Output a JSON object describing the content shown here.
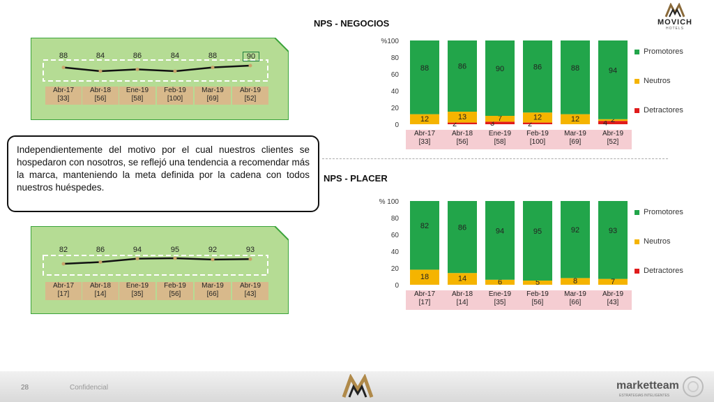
{
  "brand": {
    "name": "MOVICH",
    "sub": "HOTELS",
    "footer_brand": "marketteam",
    "footer_sub": "ESTRATEGIAS INTELIGENTES",
    "page_number": "28",
    "confidential": "Confidencial"
  },
  "callout_text": "Independientemente del motivo por el cual nuestros clientes se hospedaron con nosotros, se reflejó una tendencia a recomendar más la marca, manteniendo la meta definida por la cadena con todos nuestros huéspedes.",
  "colors": {
    "promotores": "#22a54a",
    "neutros": "#f5b400",
    "detractores": "#e01b1b",
    "panel_green": "#b5dc94",
    "panel_border": "#3aa33a",
    "label_bg_gold": "#d8b98b",
    "label_bg_pink": "#f5cdd2"
  },
  "mini_top": {
    "values": [
      "88",
      "84",
      "86",
      "84",
      "88",
      "90"
    ],
    "labels": [
      [
        "Abr-17",
        "[33]"
      ],
      [
        "Abr-18",
        "[56]"
      ],
      [
        "Ene-19",
        "[58]"
      ],
      [
        "Feb-19",
        "[100]"
      ],
      [
        "Mar-19",
        "[69]"
      ],
      [
        "Abr-19",
        "[52]"
      ]
    ]
  },
  "mini_bottom": {
    "values": [
      "82",
      "86",
      "94",
      "95",
      "92",
      "93"
    ],
    "labels": [
      [
        "Abr-17",
        "[17]"
      ],
      [
        "Abr-18",
        "[14]"
      ],
      [
        "Ene-19",
        "[35]"
      ],
      [
        "Feb-19",
        "[56]"
      ],
      [
        "Mar-19",
        "[66]"
      ],
      [
        "Abr-19",
        "[43]"
      ]
    ]
  },
  "legend": [
    "Promotores",
    "Neutros",
    "Detractores"
  ],
  "chart_data": [
    {
      "type": "bar",
      "title": "NPS - NEGOCIOS",
      "ylabel": "%",
      "ylim": [
        0,
        100
      ],
      "yticks": [
        "%100",
        "80",
        "60",
        "40",
        "20",
        "0"
      ],
      "categories": [
        [
          "Abr-17",
          "[33]"
        ],
        [
          "Abr-18",
          "[56]"
        ],
        [
          "Ene-19",
          "[58]"
        ],
        [
          "Feb-19",
          "[100]"
        ],
        [
          "Mar-19",
          "[69]"
        ],
        [
          "Abr-19",
          "[52]"
        ]
      ],
      "series": [
        {
          "name": "Promotores",
          "values": [
            88,
            86,
            90,
            86,
            88,
            94
          ]
        },
        {
          "name": "Neutros",
          "values": [
            12,
            13,
            7,
            12,
            12,
            2
          ]
        },
        {
          "name": "Detractores",
          "values": [
            0,
            2,
            3,
            2,
            0,
            4
          ]
        }
      ],
      "data_labels": {
        "Promotores": [
          "88",
          "86",
          "90",
          "86",
          "88",
          "94"
        ],
        "Neutros": [
          "12",
          "13",
          "7",
          "12",
          "12",
          "2"
        ],
        "Detractores": [
          "",
          "2",
          "3",
          "2",
          "",
          "4"
        ]
      },
      "legend_position": "right"
    },
    {
      "type": "bar",
      "title": "NPS - PLACER",
      "ylabel": "%",
      "ylim": [
        0,
        100
      ],
      "yticks": [
        "% 100",
        "80",
        "60",
        "40",
        "20",
        "0"
      ],
      "categories": [
        [
          "Abr-17",
          "[17]"
        ],
        [
          "Abr-18",
          "[14]"
        ],
        [
          "Ene-19",
          "[35]"
        ],
        [
          "Feb-19",
          "[56]"
        ],
        [
          "Mar-19",
          "[66]"
        ],
        [
          "Abr-19",
          "[43]"
        ]
      ],
      "series": [
        {
          "name": "Promotores",
          "values": [
            82,
            86,
            94,
            95,
            92,
            93
          ]
        },
        {
          "name": "Neutros",
          "values": [
            18,
            14,
            6,
            5,
            8,
            7
          ]
        },
        {
          "name": "Detractores",
          "values": [
            0,
            0,
            0,
            0,
            0,
            0
          ]
        }
      ],
      "data_labels": {
        "Promotores": [
          "82",
          "86",
          "94",
          "95",
          "92",
          "93"
        ],
        "Neutros": [
          "18",
          "14",
          "6",
          "5",
          "8",
          "7"
        ],
        "Detractores": [
          "",
          "",
          "",
          "",
          "",
          ""
        ]
      },
      "legend_position": "right"
    }
  ]
}
